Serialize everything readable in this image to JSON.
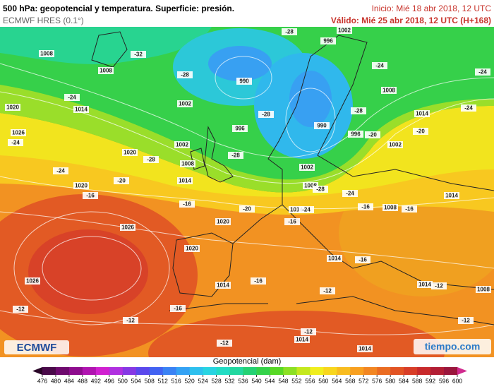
{
  "header": {
    "title": "500 hPa: geopotencial y temperatura. Superficie: presión.",
    "model": "ECMWF HRES (0.1°)",
    "init": "Inicio: Mié 18 abr 2018, 12 UTC",
    "valid": "Válido: Mié 25 abr 2018, 12 UTC (H+168)"
  },
  "map": {
    "isobar_labels": [
      1008,
      1008,
      990,
      996,
      1002,
      1014,
      1020,
      1026,
      996,
      1002,
      1020,
      1008,
      1014,
      990,
      996,
      1002,
      1002,
      1008,
      1008,
      1014,
      1020,
      1026,
      1014,
      1020,
      1008,
      1014,
      1020,
      1026,
      1014,
      1014,
      1014,
      1008,
      1014,
      1014,
      1002
    ],
    "temperature_labels": [
      -28,
      -32,
      -28,
      -24,
      -28,
      -28,
      -24,
      -24,
      -24,
      -28,
      -28,
      -24,
      -24,
      -20,
      -16,
      -20,
      -20,
      -28,
      -24,
      -24,
      -20,
      -16,
      -16,
      -16,
      -16,
      -16,
      -12,
      -16,
      -16,
      -12,
      -12,
      -12,
      -12,
      -12,
      -12
    ]
  },
  "colorbar": {
    "title": "Geopotencial (dam)",
    "ticks": [
      476,
      480,
      484,
      488,
      492,
      496,
      500,
      504,
      508,
      512,
      516,
      520,
      524,
      528,
      532,
      536,
      540,
      544,
      548,
      552,
      556,
      560,
      564,
      568,
      572,
      576,
      580,
      584,
      588,
      592,
      596,
      600
    ],
    "colors": [
      "#4a0a4a",
      "#6e0a6e",
      "#8e0c8e",
      "#b014b0",
      "#d020d0",
      "#b030e0",
      "#8638e4",
      "#5a48ec",
      "#4262f2",
      "#3a82f4",
      "#34a2f4",
      "#2ec0ee",
      "#28d4e2",
      "#22dcc4",
      "#22d8a0",
      "#24d274",
      "#34d24a",
      "#58d826",
      "#8ce024",
      "#c4e81e",
      "#f0ee1e",
      "#f8d61e",
      "#f8bc20",
      "#f8a020",
      "#f28622",
      "#ea6c22",
      "#e25424",
      "#d83e28",
      "#c82a2c",
      "#b21e34",
      "#9a163c",
      "#d02a8e"
    ],
    "under_color": "#2a0628"
  },
  "logos": {
    "left": "ECMWF",
    "right": "tiempo.com"
  }
}
